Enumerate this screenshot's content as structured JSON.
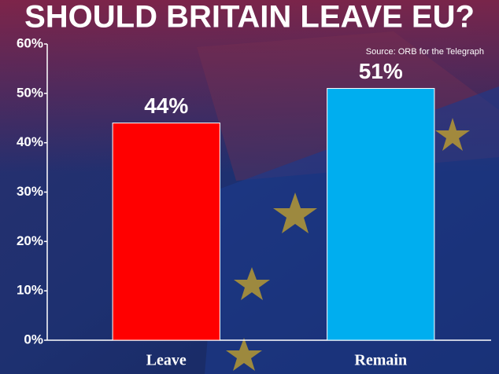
{
  "chart_data": {
    "type": "bar",
    "title": "SHOULD BRITAIN LEAVE EU?",
    "source": "Source: ORB for the Telegraph",
    "categories": [
      "Leave",
      "Remain"
    ],
    "values": [
      44,
      51
    ],
    "value_labels": [
      "44%",
      "51%"
    ],
    "colors": [
      "#ff0000",
      "#00aeef"
    ],
    "ylim": [
      0,
      60
    ],
    "yticks": [
      {
        "value": 0,
        "label": "0%"
      },
      {
        "value": 10,
        "label": "10%"
      },
      {
        "value": 20,
        "label": "20%"
      },
      {
        "value": 30,
        "label": "30%"
      },
      {
        "value": 40,
        "label": "40%"
      },
      {
        "value": 50,
        "label": "50%"
      },
      {
        "value": 60,
        "label": "60%"
      }
    ]
  }
}
